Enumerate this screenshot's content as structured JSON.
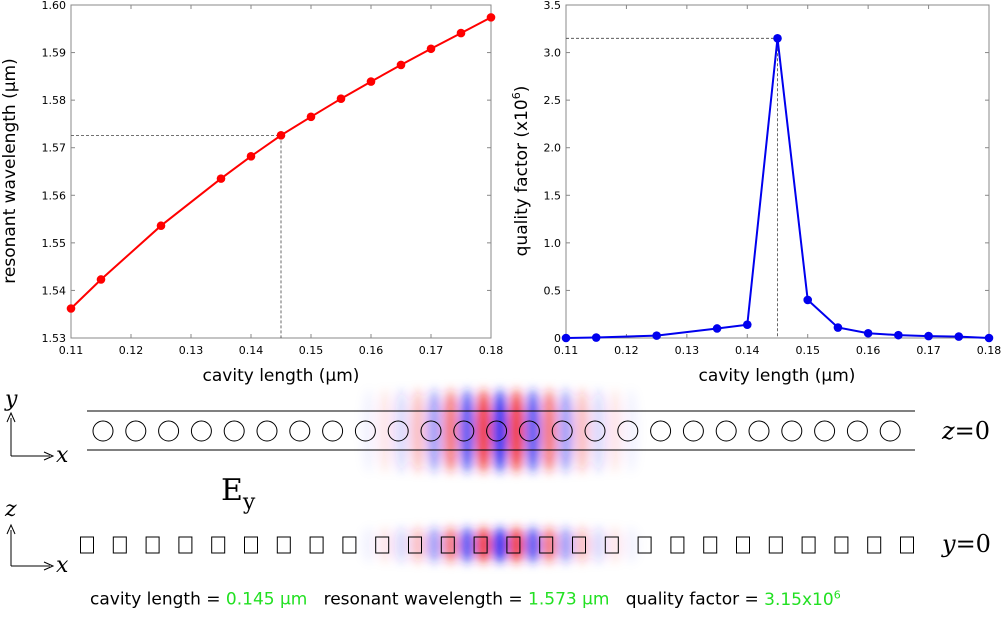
{
  "chart_data": [
    {
      "type": "line",
      "xlabel": "cavity length (μm)",
      "ylabel": "resonant wavelength (μm)",
      "xlim": [
        0.11,
        0.18
      ],
      "ylim": [
        1.53,
        1.6
      ],
      "xticks": [
        "0.11",
        "0.12",
        "0.13",
        "0.14",
        "0.15",
        "0.16",
        "0.17",
        "0.18"
      ],
      "yticks": [
        "1.53",
        "1.54",
        "1.55",
        "1.56",
        "1.57",
        "1.58",
        "1.59",
        "1.60"
      ],
      "color": "#ff0000",
      "x": [
        0.11,
        0.115,
        0.125,
        0.135,
        0.14,
        0.145,
        0.15,
        0.155,
        0.16,
        0.165,
        0.17,
        0.175,
        0.18
      ],
      "y": [
        1.5362,
        1.5423,
        1.5536,
        1.5635,
        1.5682,
        1.5726,
        1.5765,
        1.5803,
        1.5839,
        1.5874,
        1.5908,
        1.5941,
        1.5974
      ],
      "marker": {
        "x": 0.145,
        "y": 1.5726
      }
    },
    {
      "type": "line",
      "xlabel": "cavity length (μm)",
      "ylabel": "quality factor (x10",
      "ylabel_sup": "6",
      "ylabel_end": ")",
      "xlim": [
        0.11,
        0.18
      ],
      "ylim": [
        0,
        3.5
      ],
      "xticks": [
        "0.11",
        "0.12",
        "0.13",
        "0.14",
        "0.15",
        "0.16",
        "0.17",
        "0.18"
      ],
      "yticks": [
        "0",
        "0.5",
        "1.0",
        "1.5",
        "2.0",
        "2.5",
        "3.0",
        "3.5"
      ],
      "color": "#0000ee",
      "x": [
        0.11,
        0.115,
        0.125,
        0.135,
        0.14,
        0.145,
        0.15,
        0.155,
        0.16,
        0.165,
        0.17,
        0.175,
        0.18
      ],
      "y": [
        0.0,
        0.005,
        0.025,
        0.1,
        0.14,
        3.15,
        0.4,
        0.11,
        0.05,
        0.03,
        0.02,
        0.015,
        0.0
      ],
      "marker": {
        "x": 0.145,
        "y": 3.15
      }
    }
  ],
  "field_panel": {
    "field_main": "E",
    "field_sub": "y",
    "top": {
      "axis_vertical": "y",
      "axis_horizontal": "x",
      "plane_var": "z",
      "plane_eq": "=0",
      "hole_count": 25
    },
    "bottom": {
      "axis_vertical": "z",
      "axis_horizontal": "x",
      "plane_var": "y",
      "plane_eq": "=0",
      "square_count": 26
    },
    "colors": {
      "positive": "#ee2020",
      "negative": "#2020ee"
    }
  },
  "caption": {
    "label1": "cavity length = ",
    "value1": "0.145 μm",
    "label2": "resonant wavelength = ",
    "value2": "1.573 μm",
    "label3": "quality factor = ",
    "value3": "3.15x10",
    "value3_sup": "6",
    "value_color": "#22e022"
  }
}
